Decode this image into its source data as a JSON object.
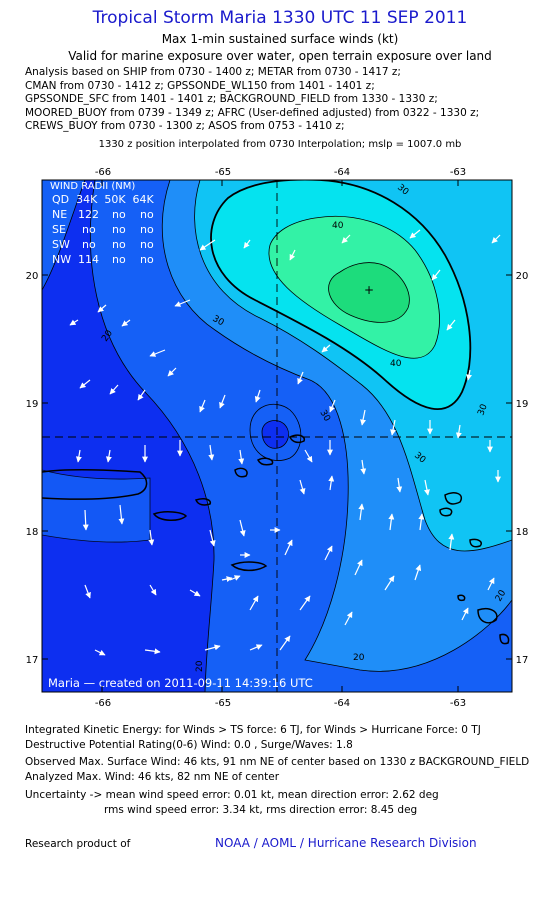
{
  "header": {
    "title": "Tropical Storm Maria 1330 UTC 11 SEP 2011",
    "subtitle1": "Max 1-min sustained surface winds (kt)",
    "subtitle2": "Valid for marine exposure over water, open terrain exposure over land"
  },
  "analysis_lines": [
    "Analysis based on SHIP from 0730 - 1400 z; METAR from 0730 - 1417 z;",
    "CMAN from 0730 - 1412 z; GPSSONDE_WL150 from 1401 - 1401 z;",
    "GPSSONDE_SFC from 1401 - 1401 z; BACKGROUND_FIELD from 1330 - 1330 z;",
    "MOORED_BUOY from 0739 - 1349 z; AFRC (User-defined adjusted) from 0322 - 1330 z;",
    "CREWS_BUOY from 0730 - 1300 z; ASOS from 0753 - 1410 z;"
  ],
  "position_note": "1330 z position interpolated from 0730 Interpolation; mslp = 1007.0 mb",
  "map": {
    "lon_ticks": [
      "-66",
      "-65",
      "-64",
      "-63"
    ],
    "lat_ticks": [
      "20",
      "19",
      "18",
      "17"
    ],
    "contour_labels": [
      "20",
      "30",
      "40",
      "30",
      "30",
      "20",
      "20",
      "30",
      "20",
      "40",
      "30"
    ],
    "wind_radii": {
      "header": "WIND RADII (NM)",
      "columns": "QD  34K  50K  64K",
      "rows": [
        {
          "qd": "NE",
          "r34": "122",
          "r50": "no",
          "r64": "no"
        },
        {
          "qd": "SE",
          "r34": "no",
          "r50": "no",
          "r64": "no"
        },
        {
          "qd": "SW",
          "r34": "no",
          "r50": "no",
          "r64": "no"
        },
        {
          "qd": "NW",
          "r34": "114",
          "r50": "no",
          "r64": "no"
        }
      ]
    },
    "footer": "Maria  —  created on 2011-09-11  14:39:16 UTC",
    "colors": {
      "band_15": "#0d2ff0",
      "band_20": "#1560f6",
      "band_25": "#1f8ef8",
      "band_30": "#10c4f4",
      "band_35": "#05e3ef",
      "band_40": "#33f2a6",
      "band_45": "#1ddc7c"
    }
  },
  "stats": {
    "ike": "Integrated Kinetic Energy:  for Winds > TS force: 6 TJ,  for Winds > Hurricane Force: 0 TJ",
    "dpr": "Destructive Potential Rating(0-6)   Wind: 0.0 , Surge/Waves: 1.8",
    "obs_max": "Observed Max. Surface Wind: 46 kts, 91 nm NE of center based on 1330 z BACKGROUND_FIELD",
    "analyzed_max": "Analyzed Max. Wind: 46 kts, 82 nm NE of center",
    "uncertainty1": "Uncertainty -> mean wind speed error: 0.01 kt,   mean direction error: 2.62 deg",
    "uncertainty2": "rms wind speed error: 3.34 kt,   rms direction error: 8.45 deg",
    "research_label": "Research product of",
    "research_org": "NOAA / AOML / Hurricane Research Division"
  }
}
